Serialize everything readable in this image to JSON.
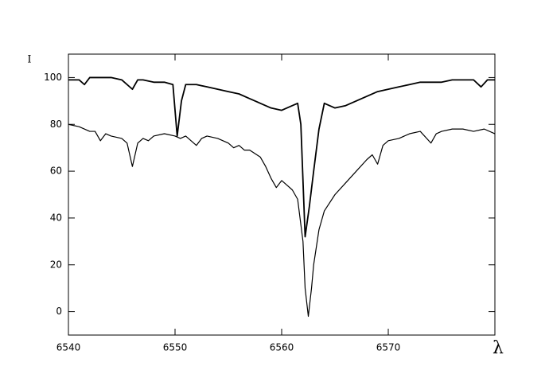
{
  "chart_data": {
    "type": "line",
    "x_label": "λ",
    "y_label": "I",
    "xlim": [
      6540,
      6580
    ],
    "ylim": [
      -10,
      110
    ],
    "xticks": [
      6540,
      6550,
      6560,
      6570
    ],
    "yticks": [
      0,
      20,
      40,
      60,
      80,
      100
    ],
    "grid": false,
    "series": [
      {
        "color": "#000000",
        "line_width": 1.8,
        "x": [
          6540,
          6541,
          6541.5,
          6542,
          6543,
          6544,
          6545,
          6546,
          6546.5,
          6547,
          6548,
          6549,
          6549.8,
          6550.2,
          6550.6,
          6551,
          6552,
          6553,
          6554,
          6555,
          6556,
          6557,
          6558,
          6559,
          6560,
          6561,
          6561.5,
          6561.8,
          6562.2,
          6562.6,
          6563,
          6563.5,
          6564,
          6565,
          6566,
          6567,
          6568,
          6569,
          6570,
          6571,
          6572,
          6573,
          6574,
          6575,
          6576,
          6577,
          6578,
          6578.7,
          6579.3,
          6580
        ],
        "values": [
          99,
          99,
          97,
          100,
          100,
          100,
          99,
          95,
          99,
          99,
          98,
          98,
          97,
          75,
          90,
          97,
          97,
          96,
          95,
          94,
          93,
          91,
          89,
          87,
          86,
          88,
          89,
          80,
          32,
          45,
          60,
          78,
          89,
          87,
          88,
          90,
          92,
          94,
          95,
          96,
          97,
          98,
          98,
          98,
          99,
          99,
          99,
          96,
          99,
          99
        ]
      },
      {
        "color": "#000000",
        "line_width": 1.2,
        "x": [
          6540,
          6541,
          6542,
          6542.5,
          6543,
          6543.5,
          6544,
          6545,
          6545.5,
          6546,
          6546.5,
          6547,
          6547.5,
          6548,
          6549,
          6550,
          6550.5,
          6551,
          6552,
          6552.5,
          6553,
          6554,
          6555,
          6555.5,
          6556,
          6556.5,
          6557,
          6558,
          6558.5,
          6559,
          6559.5,
          6560,
          6560.5,
          6561,
          6561.5,
          6562,
          6562.2,
          6562.5,
          6562.8,
          6563,
          6563.5,
          6564,
          6565,
          6566,
          6567,
          6568,
          6568.5,
          6569,
          6569.5,
          6570,
          6571,
          6572,
          6573,
          6574,
          6574.5,
          6575,
          6576,
          6577,
          6578,
          6579,
          6580
        ],
        "values": [
          80,
          79,
          77,
          77,
          73,
          76,
          75,
          74,
          72,
          62,
          72,
          74,
          73,
          75,
          76,
          75,
          74,
          75,
          71,
          74,
          75,
          74,
          72,
          70,
          71,
          69,
          69,
          66,
          62,
          57,
          53,
          56,
          54,
          52,
          48,
          30,
          10,
          -2,
          10,
          20,
          35,
          43,
          50,
          55,
          60,
          65,
          67,
          63,
          71,
          73,
          74,
          76,
          77,
          72,
          76,
          77,
          78,
          78,
          77,
          78,
          76
        ]
      }
    ]
  }
}
